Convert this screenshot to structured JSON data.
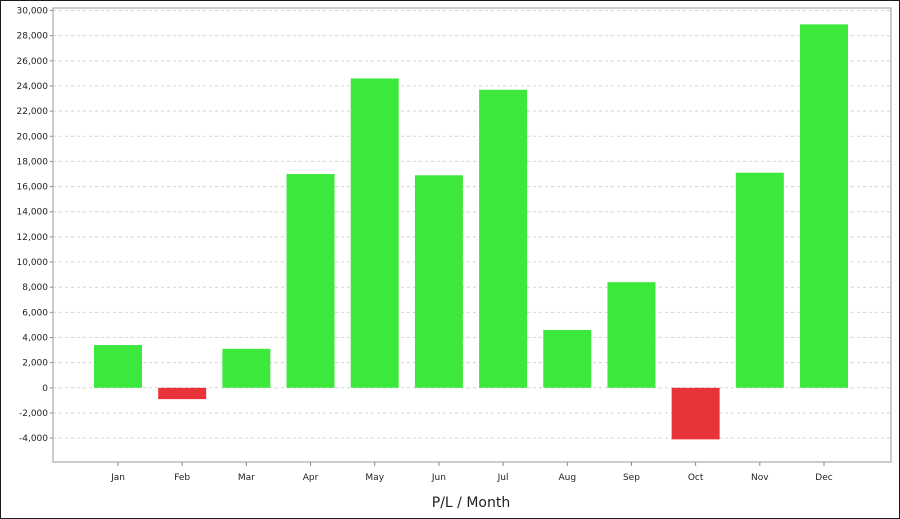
{
  "chart_data": {
    "type": "bar",
    "title": "",
    "xlabel": "P/L / Month",
    "ylabel": "",
    "categories": [
      "Jan",
      "Feb",
      "Mar",
      "Apr",
      "May",
      "Jun",
      "Jul",
      "Aug",
      "Sep",
      "Oct",
      "Nov",
      "Dec"
    ],
    "values": [
      3400,
      -900,
      3100,
      17000,
      24600,
      16900,
      23700,
      4600,
      8400,
      -4100,
      17100,
      28900
    ],
    "ylim": [
      -5900,
      30200
    ],
    "yticks": [
      -4000,
      -2000,
      0,
      2000,
      4000,
      6000,
      8000,
      10000,
      12000,
      14000,
      16000,
      18000,
      20000,
      22000,
      24000,
      26000,
      28000,
      30000
    ],
    "ytick_labels": [
      "-4,000",
      "-2,000",
      "0",
      "2,000",
      "4,000",
      "6,000",
      "8,000",
      "10,000",
      "12,000",
      "14,000",
      "16,000",
      "18,000",
      "20,000",
      "22,000",
      "24,000",
      "26,000",
      "28,000",
      "30,000"
    ],
    "grid": true,
    "colors": {
      "positive": "#3de83d",
      "negative": "#e8333b",
      "grid": "#d4d4d4",
      "axis": "#888888"
    }
  }
}
